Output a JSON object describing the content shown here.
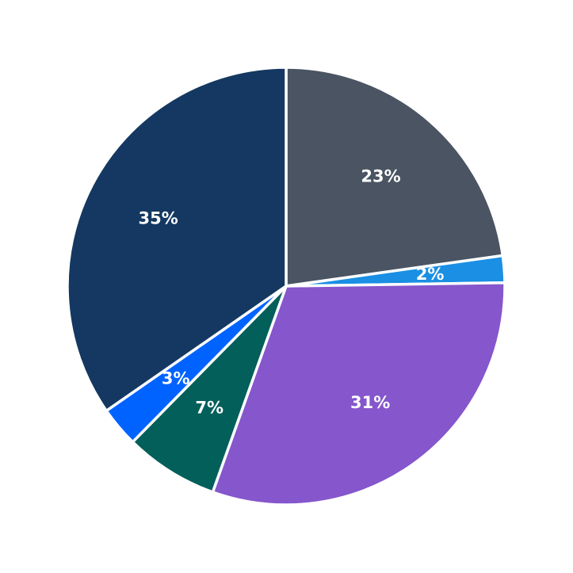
{
  "chart_data": {
    "type": "pie",
    "values": [
      23,
      2,
      31,
      7,
      3,
      35
    ],
    "value_labels": [
      "23%",
      "2%",
      "31%",
      "7%",
      "3%",
      "35%"
    ],
    "colors": [
      "#4a5462",
      "#1a8fe3",
      "#8556cc",
      "#035f5a",
      "#0063ff",
      "#143861"
    ],
    "start_angle": 90,
    "direction": "clockwise"
  }
}
